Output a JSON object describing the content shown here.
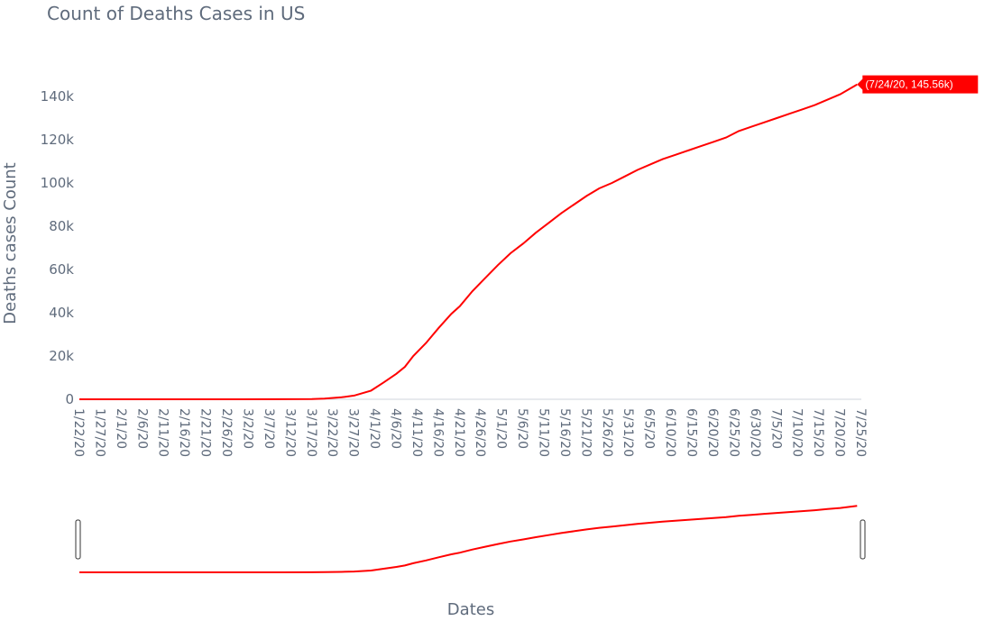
{
  "chart_data": {
    "type": "line",
    "title": "Count of Deaths Cases in US",
    "xlabel": "Dates",
    "ylabel": "Deaths cases Count",
    "x_range": [
      "1/22/20",
      "7/25/20"
    ],
    "y_range": [
      0,
      150000
    ],
    "y_ticks": [
      0,
      20000,
      40000,
      60000,
      80000,
      100000,
      120000,
      140000
    ],
    "y_tick_labels": [
      "0",
      "20k",
      "40k",
      "60k",
      "80k",
      "100k",
      "120k",
      "140k"
    ],
    "x_tick_labels": [
      "1/22/20",
      "1/27/20",
      "2/1/20",
      "2/6/20",
      "2/11/20",
      "2/16/20",
      "2/21/20",
      "2/26/20",
      "3/2/20",
      "3/7/20",
      "3/12/20",
      "3/17/20",
      "3/22/20",
      "3/27/20",
      "4/1/20",
      "4/6/20",
      "4/11/20",
      "4/16/20",
      "4/21/20",
      "4/26/20",
      "5/1/20",
      "5/6/20",
      "5/11/20",
      "5/16/20",
      "5/21/20",
      "5/26/20",
      "5/31/20",
      "6/5/20",
      "6/10/20",
      "6/15/20",
      "6/20/20",
      "6/25/20",
      "6/30/20",
      "7/5/20",
      "7/10/20",
      "7/15/20",
      "7/20/20",
      "7/25/20"
    ],
    "series": [
      {
        "color": "#ff0000",
        "points": [
          [
            "1/22/20",
            0
          ],
          [
            "2/29/20",
            1
          ],
          [
            "3/10/20",
            30
          ],
          [
            "3/17/20",
            100
          ],
          [
            "3/20/20",
            300
          ],
          [
            "3/24/20",
            900
          ],
          [
            "3/27/20",
            1700
          ],
          [
            "3/31/20",
            4000
          ],
          [
            "4/3/20",
            7800
          ],
          [
            "4/6/20",
            11800
          ],
          [
            "4/8/20",
            15000
          ],
          [
            "4/10/20",
            20000
          ],
          [
            "4/13/20",
            26000
          ],
          [
            "4/16/20",
            33000
          ],
          [
            "4/19/20",
            39500
          ],
          [
            "4/21/20",
            43000
          ],
          [
            "4/24/20",
            50000
          ],
          [
            "4/27/20",
            56000
          ],
          [
            "4/30/20",
            62000
          ],
          [
            "5/3/20",
            67500
          ],
          [
            "5/6/20",
            72000
          ],
          [
            "5/9/20",
            77000
          ],
          [
            "5/12/20",
            81500
          ],
          [
            "5/15/20",
            86000
          ],
          [
            "5/18/20",
            90000
          ],
          [
            "5/21/20",
            94000
          ],
          [
            "5/24/20",
            97500
          ],
          [
            "5/27/20",
            100000
          ],
          [
            "5/30/20",
            103000
          ],
          [
            "6/2/20",
            106000
          ],
          [
            "6/5/20",
            108500
          ],
          [
            "6/8/20",
            111000
          ],
          [
            "6/11/20",
            113000
          ],
          [
            "6/14/20",
            115000
          ],
          [
            "6/17/20",
            117000
          ],
          [
            "6/20/20",
            119000
          ],
          [
            "6/23/20",
            121000
          ],
          [
            "6/26/20",
            124000
          ],
          [
            "6/29/20",
            126000
          ],
          [
            "7/2/20",
            128000
          ],
          [
            "7/5/20",
            130000
          ],
          [
            "7/8/20",
            132000
          ],
          [
            "7/11/20",
            134000
          ],
          [
            "7/14/20",
            136000
          ],
          [
            "7/17/20",
            138500
          ],
          [
            "7/20/20",
            141000
          ],
          [
            "7/24/20",
            145560
          ]
        ]
      }
    ],
    "hover_label": "(7/24/20, 145.56k)",
    "range_slider": true
  }
}
